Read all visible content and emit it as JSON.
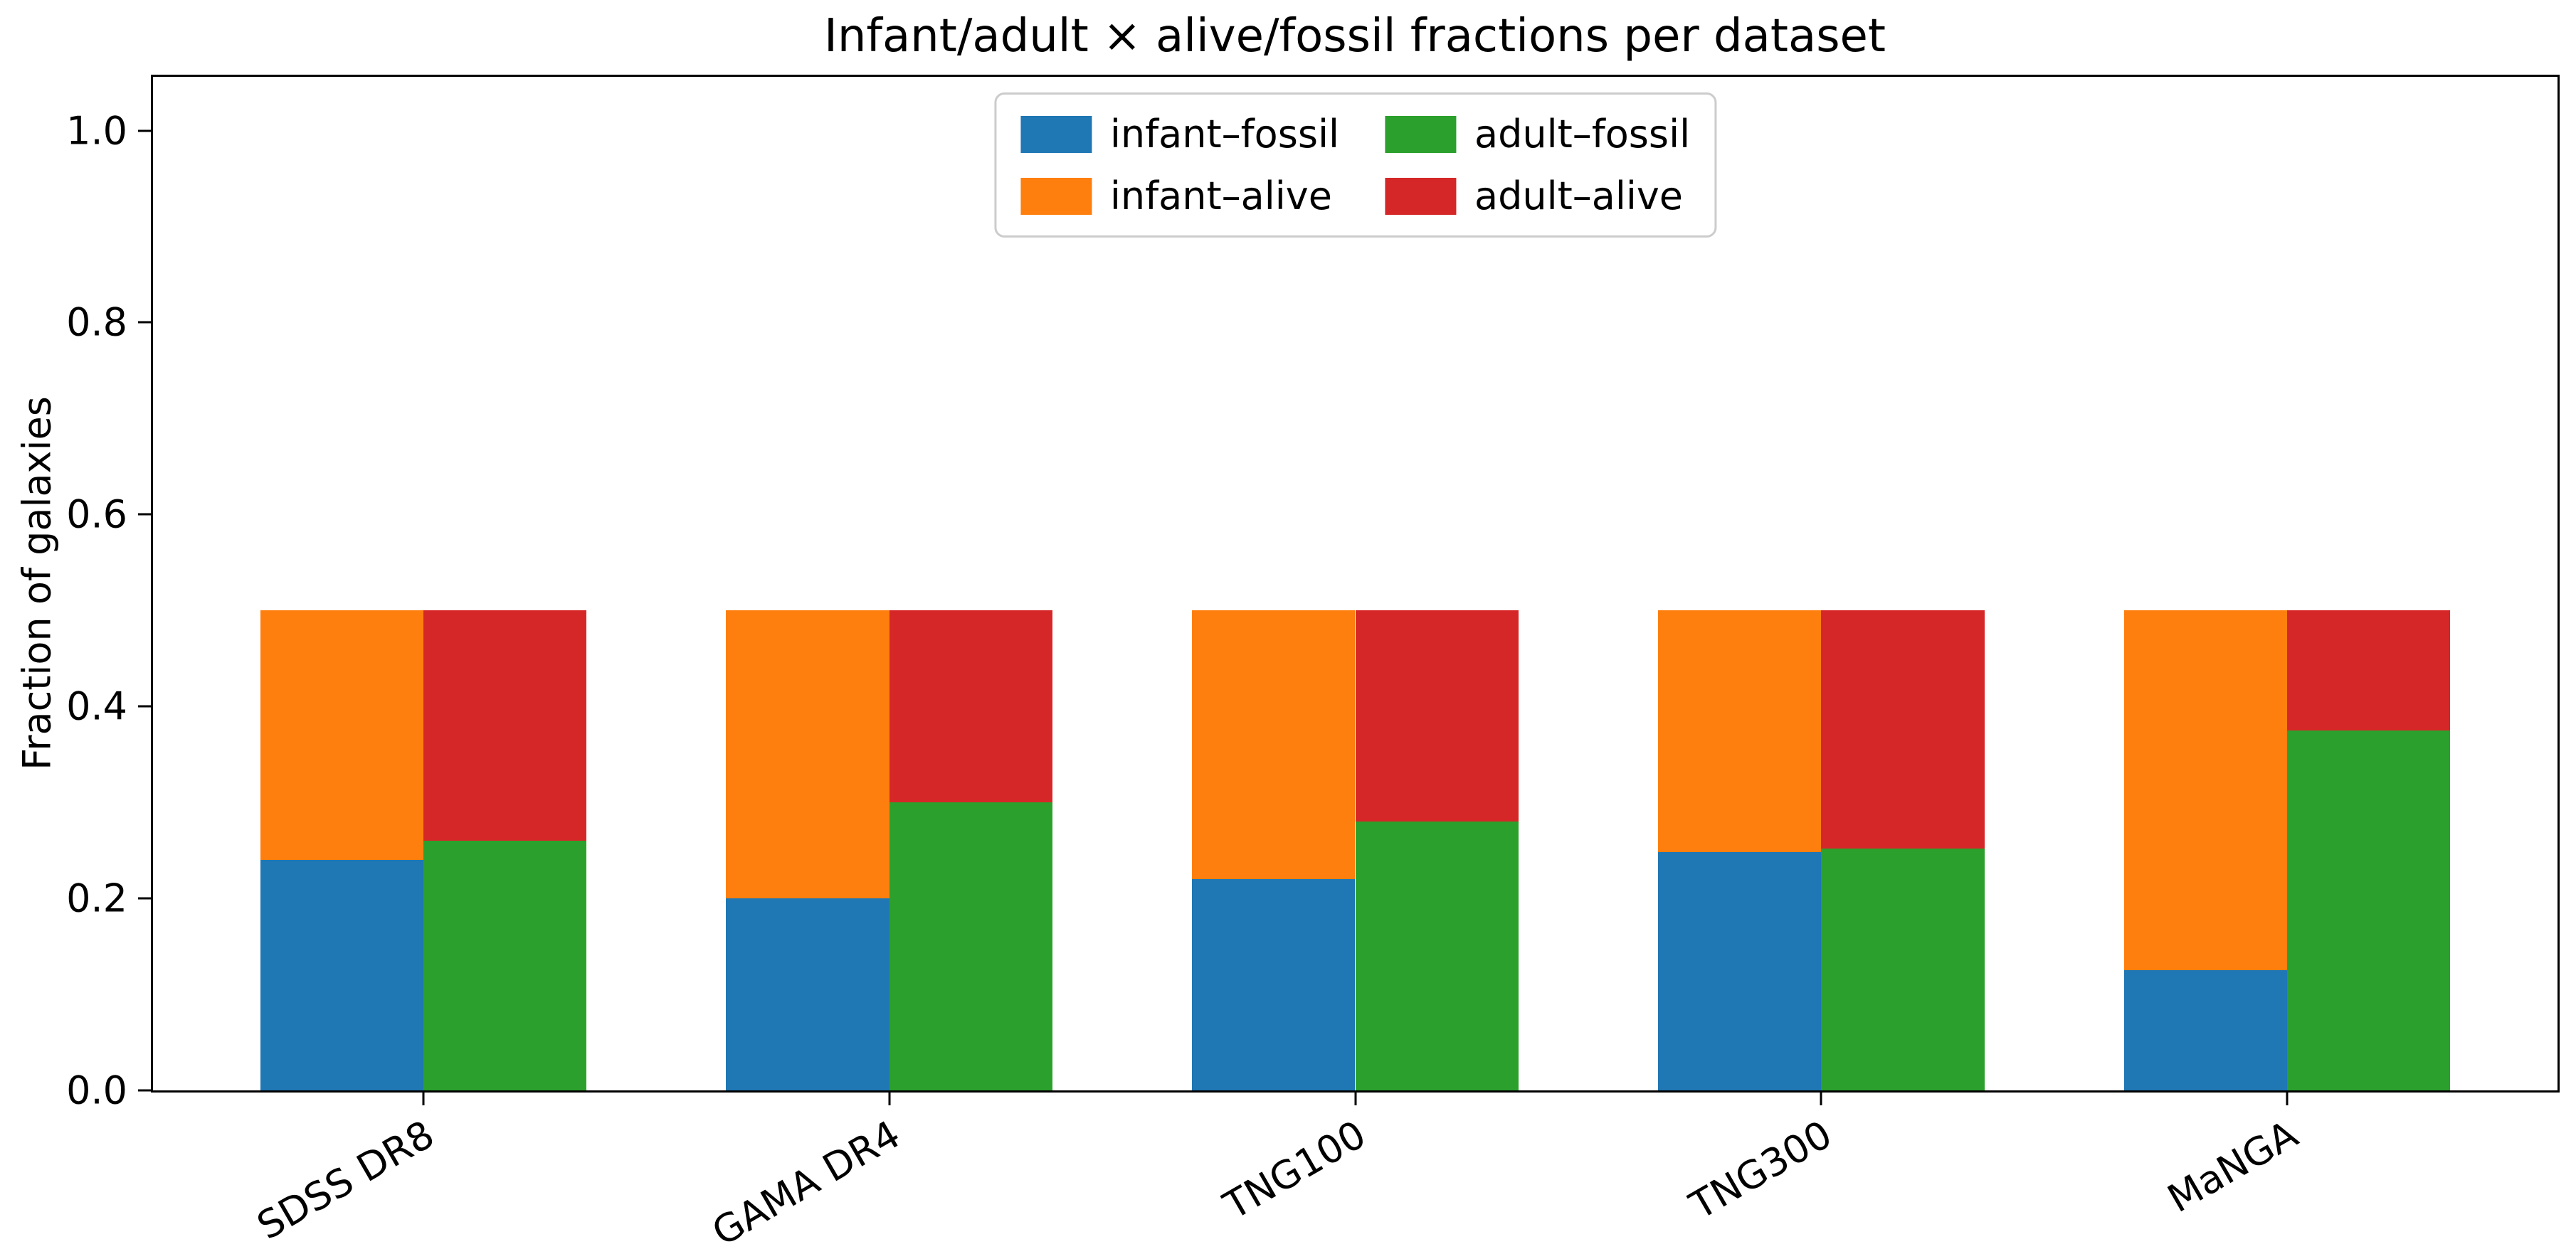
{
  "chart_data": {
    "type": "bar",
    "stacked": true,
    "title": "Infant/adult × alive/fossil fractions per dataset",
    "ylabel": "Fraction of galaxies",
    "xlabel": "",
    "categories": [
      "SDSS DR8",
      "GAMA DR4",
      "TNG100",
      "TNG300",
      "MaNGA"
    ],
    "series": [
      {
        "name": "infant–fossil",
        "color": "#1f77b4",
        "bar": "infant",
        "stack_position": "bottom",
        "values": [
          0.24,
          0.2,
          0.22,
          0.248,
          0.125
        ]
      },
      {
        "name": "infant–alive",
        "color": "#ff7f0e",
        "bar": "infant",
        "stack_position": "top",
        "values": [
          0.26,
          0.3,
          0.28,
          0.252,
          0.375
        ]
      },
      {
        "name": "adult–fossil",
        "color": "#2ca02c",
        "bar": "adult",
        "stack_position": "bottom",
        "values": [
          0.26,
          0.3,
          0.28,
          0.252,
          0.375
        ]
      },
      {
        "name": "adult–alive",
        "color": "#d62728",
        "bar": "adult",
        "stack_position": "top",
        "values": [
          0.24,
          0.2,
          0.22,
          0.248,
          0.125
        ]
      }
    ],
    "bar_stack_totals_per_bar": 0.5,
    "bars_per_group": [
      "infant",
      "adult"
    ],
    "bar_width_units": 0.35,
    "bar_offset_units": 0.175,
    "xlim": [
      -0.58,
      4.58
    ],
    "ylim": [
      0,
      1.056
    ],
    "yticks": [
      0.0,
      0.2,
      0.4,
      0.6,
      0.8,
      1.0
    ],
    "ytick_format_decimals": 1,
    "xtick_rotation_deg": 30,
    "grid": false,
    "legend": {
      "position": "upper center",
      "ncol": 2,
      "column_major_order": [
        "infant–fossil",
        "infant–alive",
        "adult–fossil",
        "adult–alive"
      ]
    },
    "colors": {
      "infant_fossil": "#1f77b4",
      "infant_alive": "#ff7f0e",
      "adult_fossil": "#2ca02c",
      "adult_alive": "#d62728",
      "axis": "#000000",
      "legend_border": "#cccccc",
      "background": "#ffffff"
    }
  }
}
